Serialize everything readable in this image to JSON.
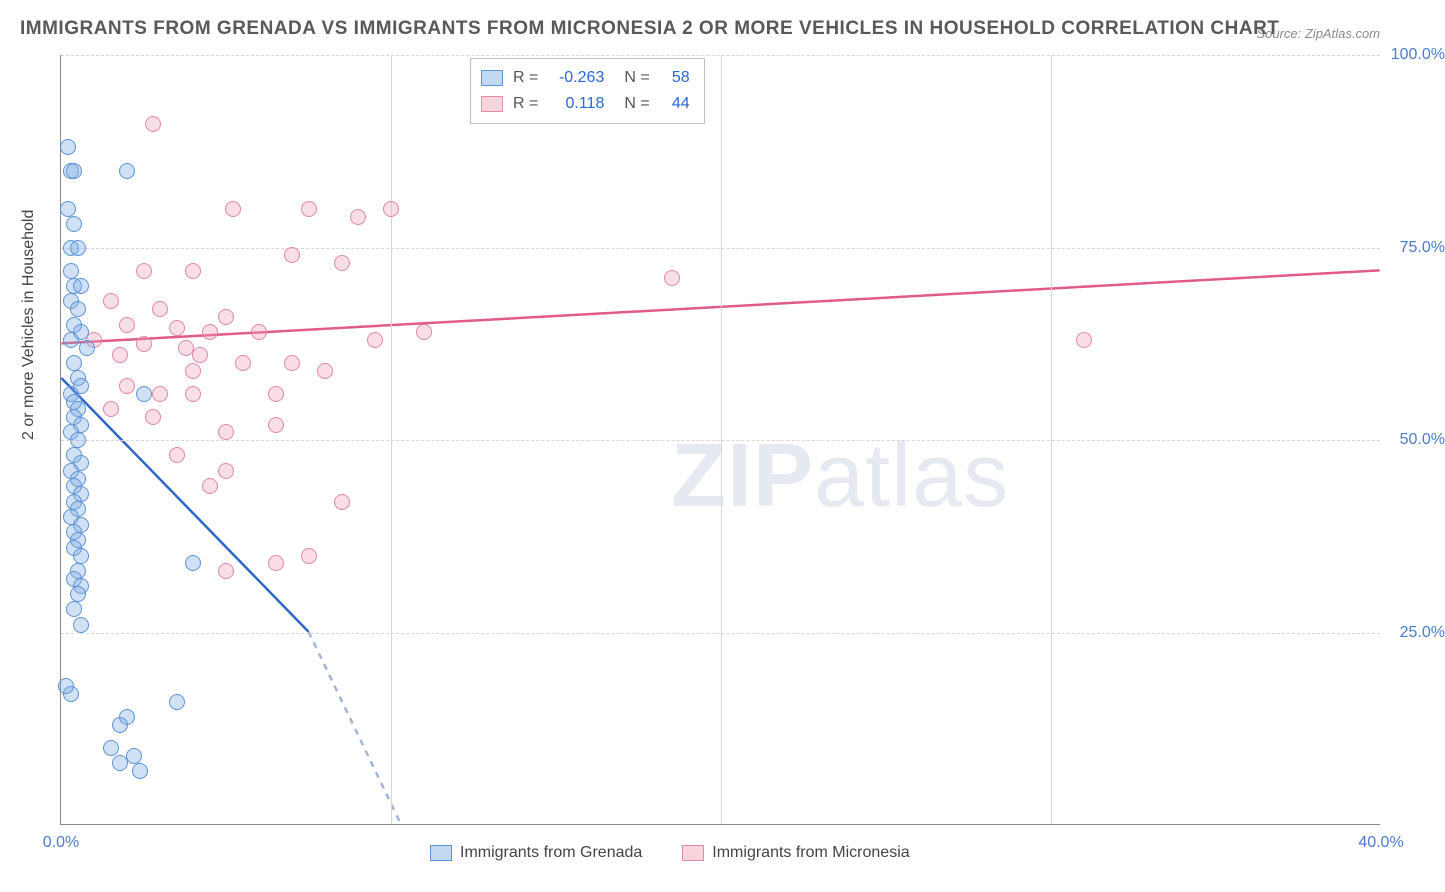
{
  "title": "IMMIGRANTS FROM GRENADA VS IMMIGRANTS FROM MICRONESIA 2 OR MORE VEHICLES IN HOUSEHOLD CORRELATION CHART",
  "source": "Source: ZipAtlas.com",
  "ylabel": "2 or more Vehicles in Household",
  "watermark_bold": "ZIP",
  "watermark_light": "atlas",
  "chart": {
    "type": "scatter",
    "xlim": [
      0,
      40
    ],
    "ylim": [
      0,
      100
    ],
    "xticks": [
      0,
      10,
      20,
      30,
      40
    ],
    "xtick_labels": [
      "0.0%",
      "",
      "",
      "",
      "40.0%"
    ],
    "yticks": [
      25,
      50,
      75,
      100
    ],
    "ytick_labels": [
      "25.0%",
      "50.0%",
      "75.0%",
      "100.0%"
    ],
    "grid_color": "#d6d6d6",
    "background_color": "#ffffff",
    "point_radius": 8
  },
  "series": {
    "blue": {
      "label": "Immigrants from Grenada",
      "color_fill": "rgba(122,168,225,0.35)",
      "color_stroke": "#5c94d6",
      "trend_color": "#2f67c9",
      "R": "-0.263",
      "N": "58",
      "trend": {
        "x1": 0,
        "y1": 58,
        "x2": 7.5,
        "y2": 25,
        "dash_x2": 10.3,
        "dash_y2": 0
      },
      "points": [
        [
          0.2,
          88
        ],
        [
          0.3,
          85
        ],
        [
          0.4,
          85
        ],
        [
          0.2,
          80
        ],
        [
          2.0,
          85
        ],
        [
          0.4,
          78
        ],
        [
          0.3,
          75
        ],
        [
          0.5,
          75
        ],
        [
          0.3,
          72
        ],
        [
          0.4,
          70
        ],
        [
          0.6,
          70
        ],
        [
          0.3,
          68
        ],
        [
          0.5,
          67
        ],
        [
          0.4,
          65
        ],
        [
          0.6,
          64
        ],
        [
          0.3,
          63
        ],
        [
          0.8,
          62
        ],
        [
          0.4,
          60
        ],
        [
          0.5,
          58
        ],
        [
          0.6,
          57
        ],
        [
          0.3,
          56
        ],
        [
          0.4,
          55
        ],
        [
          0.5,
          54
        ],
        [
          0.4,
          53
        ],
        [
          0.6,
          52
        ],
        [
          2.5,
          56
        ],
        [
          0.3,
          51
        ],
        [
          0.5,
          50
        ],
        [
          0.4,
          48
        ],
        [
          0.6,
          47
        ],
        [
          0.3,
          46
        ],
        [
          0.5,
          45
        ],
        [
          0.4,
          44
        ],
        [
          0.6,
          43
        ],
        [
          0.4,
          42
        ],
        [
          0.5,
          41
        ],
        [
          0.3,
          40
        ],
        [
          0.6,
          39
        ],
        [
          0.4,
          38
        ],
        [
          0.5,
          37
        ],
        [
          0.4,
          36
        ],
        [
          0.6,
          35
        ],
        [
          4.0,
          34
        ],
        [
          0.5,
          33
        ],
        [
          0.4,
          32
        ],
        [
          0.6,
          31
        ],
        [
          0.5,
          30
        ],
        [
          0.4,
          28
        ],
        [
          0.6,
          26
        ],
        [
          0.3,
          17
        ],
        [
          0.15,
          18
        ],
        [
          2.0,
          14
        ],
        [
          1.8,
          13
        ],
        [
          3.5,
          16
        ],
        [
          1.5,
          10
        ],
        [
          2.2,
          9
        ],
        [
          1.8,
          8
        ],
        [
          2.4,
          7
        ]
      ]
    },
    "pink": {
      "label": "Immigrants from Micronesia",
      "color_fill": "rgba(240,160,180,0.35)",
      "color_stroke": "#e088a5",
      "trend_color": "#e05a8a",
      "R": "0.118",
      "N": "44",
      "trend": {
        "x1": 0,
        "y1": 62.5,
        "x2": 40,
        "y2": 72
      },
      "points": [
        [
          2.8,
          91
        ],
        [
          5.2,
          80
        ],
        [
          7.5,
          80
        ],
        [
          9.0,
          79
        ],
        [
          10.0,
          80
        ],
        [
          7.0,
          74
        ],
        [
          2.5,
          72
        ],
        [
          4.0,
          72
        ],
        [
          8.5,
          73
        ],
        [
          1.5,
          68
        ],
        [
          3.0,
          67
        ],
        [
          5.0,
          66
        ],
        [
          2.0,
          65
        ],
        [
          3.5,
          64.5
        ],
        [
          4.5,
          64
        ],
        [
          6.0,
          64
        ],
        [
          1.0,
          63
        ],
        [
          2.5,
          62.5
        ],
        [
          3.8,
          62
        ],
        [
          1.8,
          61
        ],
        [
          4.2,
          61
        ],
        [
          5.5,
          60
        ],
        [
          7.0,
          60
        ],
        [
          8.0,
          59
        ],
        [
          9.5,
          63
        ],
        [
          2.0,
          57
        ],
        [
          3.0,
          56
        ],
        [
          4.0,
          56
        ],
        [
          6.5,
          56
        ],
        [
          1.5,
          54
        ],
        [
          2.8,
          53
        ],
        [
          4.0,
          59
        ],
        [
          5.0,
          51
        ],
        [
          6.5,
          52
        ],
        [
          3.5,
          48
        ],
        [
          5.0,
          46
        ],
        [
          4.5,
          44
        ],
        [
          8.5,
          42
        ],
        [
          5.0,
          33
        ],
        [
          6.5,
          34
        ],
        [
          7.5,
          35
        ],
        [
          18.5,
          71
        ],
        [
          31.0,
          63
        ],
        [
          11.0,
          64
        ]
      ]
    }
  },
  "legend": {
    "item1": "Immigrants from Grenada",
    "item2": "Immigrants from Micronesia"
  },
  "stats_layout": {
    "R_label": "R =",
    "N_label": "N ="
  }
}
